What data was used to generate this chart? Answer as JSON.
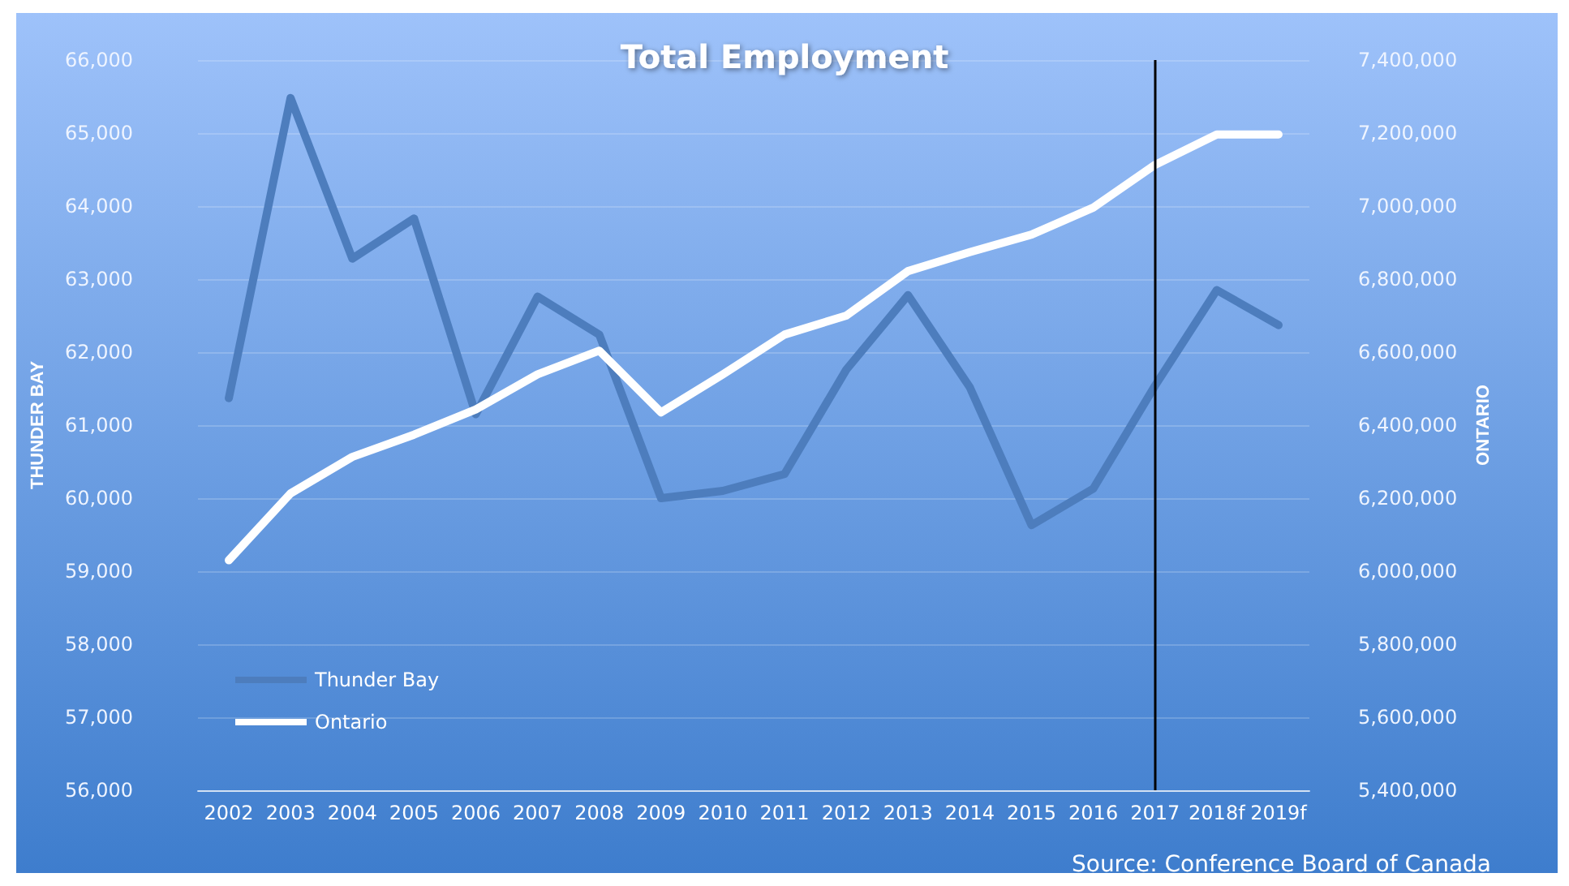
{
  "chart_data": {
    "type": "line",
    "title": "Total Employment",
    "ylabel": "THUNDER BAY",
    "y2label": "ONTARIO",
    "categories": [
      "2002",
      "2003",
      "2004",
      "2005",
      "2006",
      "2007",
      "2008",
      "2009",
      "2010",
      "2011",
      "2012",
      "2013",
      "2014",
      "2015",
      "2016",
      "2017",
      "2018f",
      "2019f"
    ],
    "series": [
      {
        "name": "Thunder Bay",
        "color": "#4d7dbd",
        "values": [
          61370,
          65480,
          63280,
          63830,
          61150,
          62760,
          62240,
          60000,
          60100,
          60330,
          61760,
          62780,
          61520,
          59630,
          60130,
          61540,
          62850,
          62370
        ]
      },
      {
        "name": "Ontario",
        "color": "#ffffff",
        "axis": "y2",
        "values": [
          6030000,
          6213000,
          6313000,
          6374000,
          6443000,
          6539000,
          6604000,
          6435000,
          6539000,
          6648000,
          6700000,
          6822000,
          6874000,
          6922000,
          6996000,
          7113000,
          7196000,
          7196000
        ]
      }
    ],
    "ylim": [
      56000,
      66000
    ],
    "yticks": [
      {
        "value": 56000,
        "label": "56,000"
      },
      {
        "value": 57000,
        "label": "57,000"
      },
      {
        "value": 58000,
        "label": "58,000"
      },
      {
        "value": 59000,
        "label": "59,000"
      },
      {
        "value": 60000,
        "label": "60,000"
      },
      {
        "value": 61000,
        "label": "61,000"
      },
      {
        "value": 62000,
        "label": "62,000"
      },
      {
        "value": 63000,
        "label": "63,000"
      },
      {
        "value": 64000,
        "label": "64,000"
      },
      {
        "value": 65000,
        "label": "65,000"
      },
      {
        "value": 66000,
        "label": "66,000"
      }
    ],
    "y2lim": [
      5400000,
      7400000
    ],
    "y2ticks": [
      {
        "value": 5400000,
        "label": "5,400,000"
      },
      {
        "value": 5600000,
        "label": "5,600,000"
      },
      {
        "value": 5800000,
        "label": "5,800,000"
      },
      {
        "value": 6000000,
        "label": "6,000,000"
      },
      {
        "value": 6200000,
        "label": "6,200,000"
      },
      {
        "value": 6400000,
        "label": "6,400,000"
      },
      {
        "value": 6600000,
        "label": "6,600,000"
      },
      {
        "value": 6800000,
        "label": "6,800,000"
      },
      {
        "value": 7000000,
        "label": "7,000,000"
      },
      {
        "value": 7200000,
        "label": "7,200,000"
      },
      {
        "value": 7400000,
        "label": "7,400,000"
      }
    ],
    "ref_lines": [
      {
        "axis": "x",
        "value": "2017",
        "color": "#000000"
      }
    ],
    "annotations": [
      "Source: Conference Board of Canada"
    ],
    "grid": "y",
    "legend": "bottom left",
    "marker": "none",
    "line_style": "solid"
  }
}
